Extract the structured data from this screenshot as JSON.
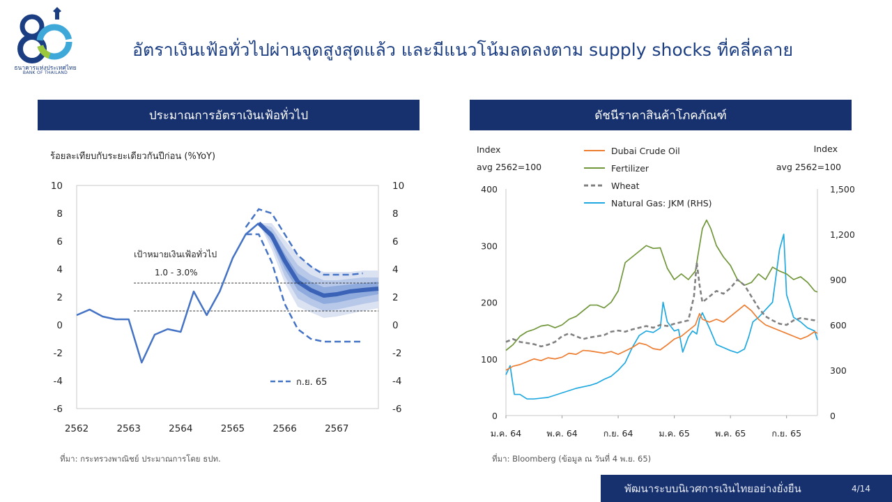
{
  "logo": {
    "number": "80",
    "name_th": "ธนาคารแห่งประเทศไทย",
    "name_en": "BANK OF THAILAND"
  },
  "title": "อัตราเงินเฟ้อทั่วไปผ่านจุดสูงสุดแล้ว และมีแนวโน้มลดลงตาม supply shocks ที่คลี่คลาย",
  "left_panel": {
    "header": "ประมาณการอัตราเงินเฟ้อทั่วไป",
    "source": "ที่มา: กระทรวงพาณิชย์ ประมาณการโดย ธปท."
  },
  "right_panel": {
    "header": "ดัชนีราคาสินค้าโภคภัณฑ์",
    "source": "ที่มา: Bloomberg (ข้อมูล ณ วันที่ 4 พ.ย. 65)"
  },
  "footer": {
    "text": "พัฒนาระบบนิเวศการเงินไทยอย่างยั่งยืน",
    "page": "4/14"
  },
  "colors": {
    "navy": "#17306e",
    "blue": "#4472c4",
    "oil": "#ed7d31",
    "fertilizer": "#70963a",
    "wheat": "#808080",
    "gas": "#1fa8e0"
  },
  "chart_data": [
    {
      "type": "line",
      "title": "",
      "ylabel": "ร้อยละเทียบกับระยะเดียวกันปีก่อน (%YoY)",
      "ylim": [
        -6,
        10
      ],
      "yticks": [
        -6,
        -4,
        -2,
        0,
        2,
        4,
        6,
        8,
        10
      ],
      "xlim": [
        2562,
        2567.8
      ],
      "x_ticks": [
        "2562",
        "2563",
        "2564",
        "2565",
        "2566",
        "2567"
      ],
      "target": {
        "label": "เป้าหมายเงินเฟ้อทั่วไป",
        "range_label": "1.0 - 3.0%",
        "low": 1.0,
        "high": 3.0
      },
      "series": [
        {
          "name": "",
          "style": "solid",
          "x": [
            2562.0,
            2562.25,
            2562.5,
            2562.75,
            2563.0,
            2563.25,
            2563.5,
            2563.75,
            2564.0,
            2564.25,
            2564.5,
            2564.75,
            2565.0,
            2565.25,
            2565.5
          ],
          "values": [
            0.7,
            1.1,
            0.6,
            0.4,
            0.4,
            -2.7,
            -0.7,
            -0.3,
            -0.5,
            2.4,
            0.7,
            2.4,
            4.8,
            6.5,
            7.3
          ]
        },
        {
          "name": "ก.ย. 65",
          "style": "dashed",
          "x": [
            2565.25,
            2565.5,
            2565.75,
            2566.0,
            2566.25,
            2566.5,
            2566.75,
            2567.0,
            2567.25,
            2567.5
          ],
          "upper": [
            7.0,
            8.3,
            8.0,
            6.5,
            5.0,
            4.2,
            3.6,
            3.6,
            3.6,
            3.7
          ],
          "lower": [
            6.5,
            6.5,
            4.5,
            1.5,
            -0.3,
            -1.0,
            -1.2,
            -1.2,
            -1.2,
            -1.2
          ]
        }
      ],
      "fan": {
        "x": [
          2565.5,
          2565.75,
          2566.0,
          2566.25,
          2566.5,
          2566.75,
          2567.0,
          2567.25,
          2567.5,
          2567.8
        ],
        "center": [
          7.3,
          6.4,
          4.6,
          3.1,
          2.5,
          2.1,
          2.2,
          2.4,
          2.5,
          2.6
        ],
        "bands": [
          {
            "upper": [
              7.3,
              7.3,
              6.1,
              5.0,
              4.2,
              3.8,
              3.8,
              3.8,
              3.9,
              3.9
            ],
            "lower": [
              7.3,
              5.4,
              3.0,
              1.3,
              0.9,
              0.5,
              0.6,
              0.8,
              1.0,
              1.2
            ]
          },
          {
            "upper": [
              7.3,
              7.0,
              5.6,
              4.3,
              3.6,
              3.2,
              3.2,
              3.3,
              3.4,
              3.4
            ],
            "lower": [
              7.3,
              5.8,
              3.5,
              1.9,
              1.4,
              1.0,
              1.1,
              1.3,
              1.5,
              1.7
            ]
          },
          {
            "upper": [
              7.3,
              6.7,
              5.1,
              3.7,
              3.1,
              2.7,
              2.8,
              2.9,
              3.0,
              3.1
            ],
            "lower": [
              7.3,
              6.1,
              4.0,
              2.5,
              1.9,
              1.5,
              1.6,
              1.8,
              2.0,
              2.2
            ]
          }
        ]
      }
    },
    {
      "type": "line",
      "title": "",
      "left_axis": {
        "label1": "Index",
        "label2": "avg 2562=100",
        "ylim": [
          0,
          400
        ],
        "ticks": [
          "0",
          "100",
          "200",
          "300",
          "400"
        ]
      },
      "right_axis": {
        "label1": "Index",
        "label2": "avg 2562=100",
        "ylim": [
          0,
          1500
        ],
        "ticks": [
          "0",
          "300",
          "600",
          "900",
          "1,200",
          "1,500"
        ]
      },
      "x_ticks": [
        "ม.ค. 64",
        "พ.ค. 64",
        "ก.ย. 64",
        "ม.ค. 65",
        "พ.ค. 65",
        "ก.ย. 65"
      ],
      "x_tick_pos": [
        0,
        4,
        8,
        12,
        16,
        20
      ],
      "xlim": [
        0,
        22.2
      ],
      "series": [
        {
          "name": "Dubai Crude Oil",
          "axis": "left",
          "style": "solid",
          "x": [
            0,
            0.5,
            1,
            1.5,
            2,
            2.5,
            3,
            3.5,
            4,
            4.5,
            5,
            5.5,
            6,
            6.5,
            7,
            7.5,
            8,
            8.5,
            9,
            9.5,
            10,
            10.5,
            11,
            11.5,
            12,
            12.5,
            13,
            13.5,
            13.8,
            14,
            14.5,
            15,
            15.5,
            16,
            16.5,
            17,
            17.5,
            18,
            18.5,
            19,
            19.5,
            20,
            20.5,
            21,
            21.5,
            22,
            22.2
          ],
          "values": [
            80,
            87,
            90,
            95,
            100,
            97,
            102,
            100,
            103,
            110,
            108,
            115,
            114,
            112,
            110,
            113,
            108,
            114,
            120,
            128,
            125,
            118,
            116,
            125,
            135,
            140,
            150,
            160,
            180,
            170,
            165,
            170,
            165,
            175,
            185,
            195,
            185,
            170,
            160,
            155,
            150,
            145,
            140,
            135,
            140,
            148,
            145
          ]
        },
        {
          "name": "Fertilizer",
          "axis": "left",
          "style": "solid",
          "x": [
            0,
            0.5,
            1,
            1.5,
            2,
            2.5,
            3,
            3.5,
            4,
            4.5,
            5,
            5.5,
            6,
            6.5,
            7,
            7.5,
            8,
            8.5,
            9,
            9.5,
            10,
            10.5,
            11,
            11.5,
            12,
            12.5,
            13,
            13.5,
            13.8,
            14,
            14.3,
            14.6,
            15,
            15.5,
            16,
            16.5,
            17,
            17.5,
            18,
            18.5,
            19,
            19.5,
            20,
            20.5,
            21,
            21.5,
            22,
            22.2
          ],
          "values": [
            115,
            125,
            140,
            148,
            152,
            158,
            160,
            155,
            160,
            170,
            175,
            185,
            195,
            195,
            190,
            200,
            220,
            270,
            280,
            290,
            300,
            295,
            296,
            260,
            240,
            250,
            240,
            255,
            300,
            330,
            345,
            330,
            300,
            280,
            265,
            240,
            230,
            235,
            250,
            240,
            262,
            255,
            250,
            240,
            245,
            235,
            220,
            218
          ]
        },
        {
          "name": "Wheat",
          "axis": "left",
          "style": "dashed",
          "x": [
            0,
            0.5,
            1,
            1.5,
            2,
            2.5,
            3,
            3.5,
            4,
            4.5,
            5,
            5.5,
            6,
            6.5,
            7,
            7.5,
            8,
            8.5,
            9,
            9.5,
            10,
            10.5,
            11,
            11.5,
            12,
            12.5,
            13,
            13.4,
            13.6,
            13.8,
            14,
            14.5,
            15,
            15.5,
            16,
            16.5,
            17,
            17.5,
            18,
            18.5,
            19,
            19.5,
            20,
            20.5,
            21,
            21.5,
            22,
            22.2
          ],
          "values": [
            130,
            135,
            130,
            128,
            126,
            122,
            125,
            130,
            140,
            145,
            140,
            135,
            138,
            140,
            142,
            148,
            150,
            148,
            152,
            155,
            158,
            155,
            160,
            158,
            162,
            165,
            168,
            210,
            270,
            230,
            200,
            210,
            220,
            215,
            225,
            240,
            230,
            210,
            190,
            175,
            168,
            162,
            160,
            168,
            172,
            170,
            168,
            165
          ]
        },
        {
          "name": "Natural Gas: JKM (RHS)",
          "axis": "right",
          "style": "solid",
          "x": [
            0,
            0.3,
            0.6,
            1,
            1.5,
            2,
            2.5,
            3,
            3.5,
            4,
            4.5,
            5,
            5.5,
            6,
            6.5,
            7,
            7.5,
            8,
            8.5,
            9,
            9.5,
            10,
            10.5,
            11,
            11.2,
            11.5,
            12,
            12.3,
            12.6,
            13,
            13.3,
            13.6,
            13.8,
            14,
            14.5,
            15,
            15.5,
            16,
            16.5,
            17,
            17.3,
            17.6,
            18,
            18.5,
            19,
            19.5,
            19.8,
            20,
            20.5,
            21,
            21.5,
            22,
            22.2
          ],
          "values": [
            270,
            330,
            140,
            140,
            110,
            110,
            115,
            120,
            135,
            150,
            165,
            180,
            190,
            200,
            215,
            240,
            260,
            300,
            350,
            450,
            530,
            560,
            550,
            580,
            750,
            620,
            560,
            570,
            420,
            520,
            560,
            540,
            640,
            680,
            580,
            470,
            450,
            430,
            415,
            440,
            520,
            620,
            650,
            700,
            750,
            1100,
            1200,
            800,
            650,
            620,
            580,
            560,
            500
          ]
        }
      ]
    }
  ]
}
